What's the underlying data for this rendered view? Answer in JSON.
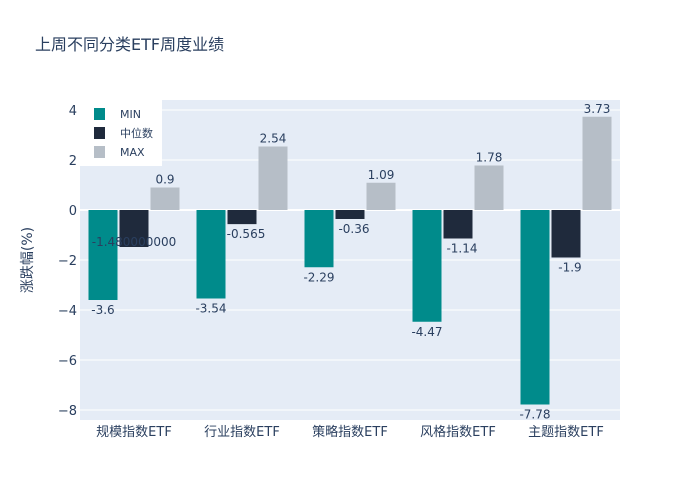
{
  "chart_data": {
    "type": "bar",
    "title": "上周不同分类ETF周度业绩",
    "xlabel": "",
    "ylabel": "涨跌幅(%)",
    "categories": [
      "规模指数ETF",
      "行业指数ETF",
      "策略指数ETF",
      "风格指数ETF",
      "主题指数ETF"
    ],
    "series": [
      {
        "name": "MIN",
        "color": "#008b8b",
        "values": [
          -3.6,
          -3.54,
          -2.29,
          -4.47,
          -7.78
        ]
      },
      {
        "name": "中位数",
        "color": "#1f2a3c",
        "values": [
          -1.48,
          -0.565,
          -0.36,
          -1.14,
          -1.9
        ]
      },
      {
        "name": "MAX",
        "color": "#b6bec7",
        "values": [
          0.9,
          2.54,
          1.09,
          1.78,
          3.73
        ]
      }
    ],
    "labels": [
      [
        "-3.6",
        "-3.54",
        "-2.29",
        "-4.47",
        "-7.78"
      ],
      [
        "-1.480000000",
        "-0.565",
        "-0.36",
        "-1.14",
        "-1.9"
      ],
      [
        "0.9",
        "2.54",
        "1.09",
        "1.78",
        "3.73"
      ]
    ],
    "yticks": [
      4,
      2,
      0,
      -2,
      -4,
      -6,
      -8
    ],
    "ylim": [
      -8.4,
      4.4
    ],
    "grid": true,
    "legend": "top-left",
    "colors": {
      "plot_bg": "#e5ecf6",
      "grid": "#ffffff",
      "text": "#2a3f5f"
    }
  }
}
